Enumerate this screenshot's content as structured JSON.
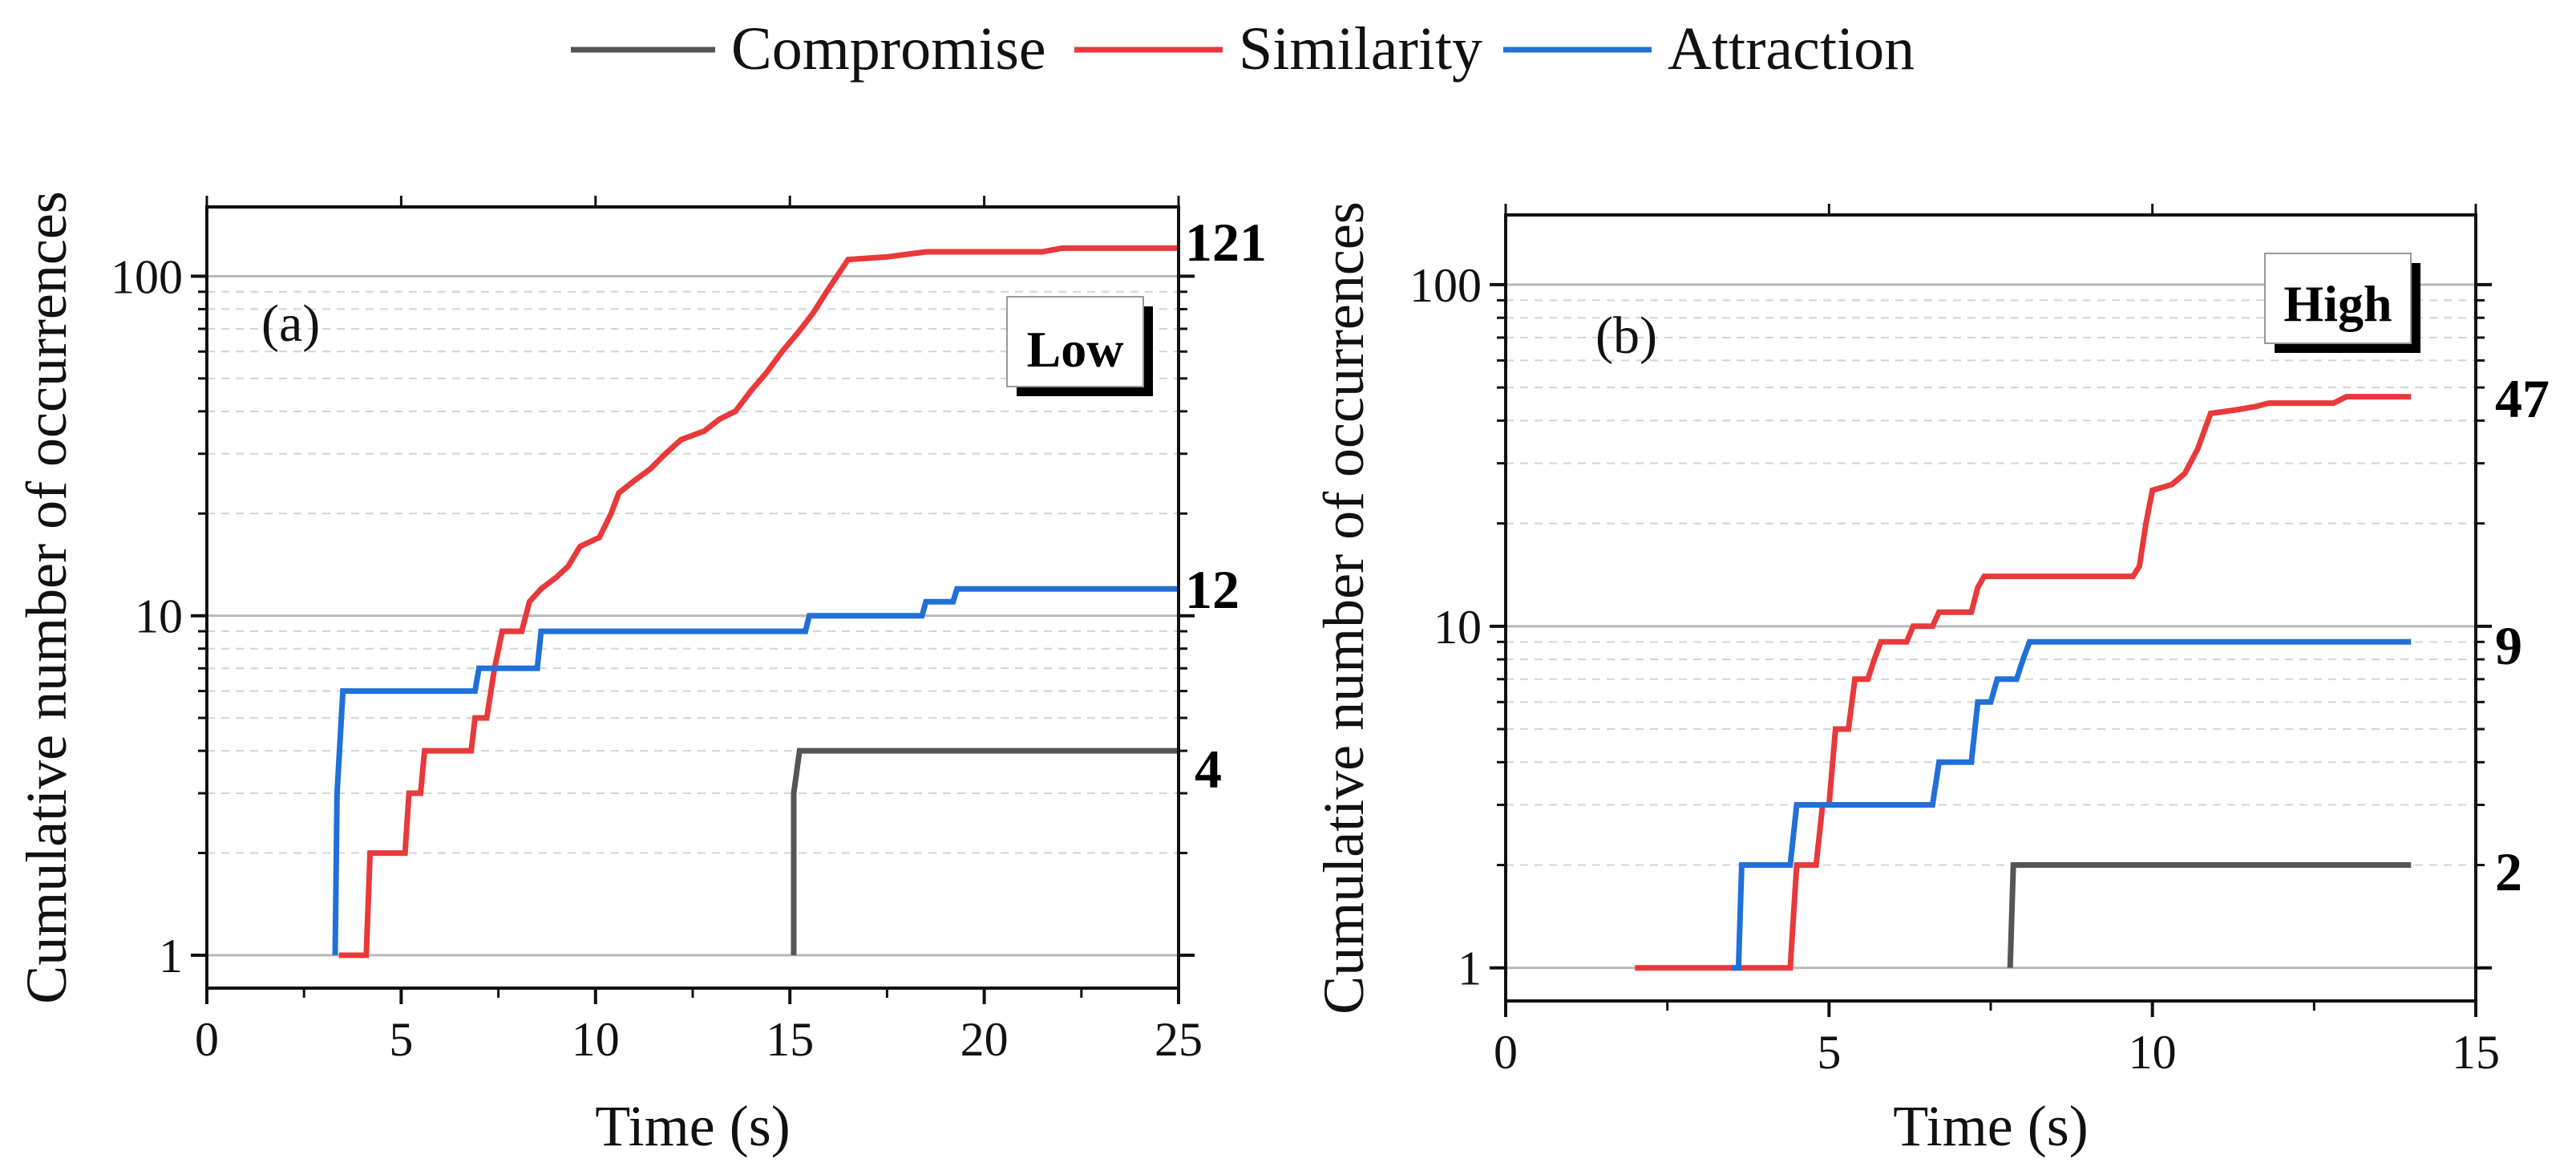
{
  "legend": [
    {
      "name": "Compromise",
      "color": "#555555"
    },
    {
      "name": "Similarity",
      "color": "#e8393b"
    },
    {
      "name": "Attraction",
      "color": "#2070d8"
    }
  ],
  "chart_data": [
    {
      "type": "line",
      "panel": "(a)",
      "badge": "Low",
      "xlabel": "Time (s)",
      "ylabel": "Cumulative number of occurrences",
      "yscale": "log",
      "xlim": [
        0,
        25
      ],
      "ylim": [
        0.8,
        160
      ],
      "xticks": [
        0,
        5,
        10,
        15,
        20,
        25
      ],
      "xtick_labels": [
        "0",
        "5",
        "10",
        "15",
        "20",
        "25"
      ],
      "yticks": [
        1,
        10,
        100
      ],
      "ytick_labels": [
        "1",
        "10",
        "100"
      ],
      "end_labels": [
        "121",
        "12",
        "4"
      ],
      "series": [
        {
          "name": "Compromise",
          "color": "#555555",
          "points": [
            [
              15.1,
              1
            ],
            [
              15.1,
              3
            ],
            [
              15.25,
              4
            ],
            [
              25,
              4
            ]
          ]
        },
        {
          "name": "Similarity",
          "color": "#e8393b",
          "points": [
            [
              3.4,
              1
            ],
            [
              4.1,
              1
            ],
            [
              4.2,
              2
            ],
            [
              5.1,
              2
            ],
            [
              5.2,
              3
            ],
            [
              5.5,
              3
            ],
            [
              5.6,
              4
            ],
            [
              6.8,
              4
            ],
            [
              6.9,
              5
            ],
            [
              7.2,
              5
            ],
            [
              7.4,
              7
            ],
            [
              7.6,
              9
            ],
            [
              8.1,
              9
            ],
            [
              8.3,
              11
            ],
            [
              8.6,
              12
            ],
            [
              9.0,
              13
            ],
            [
              9.3,
              14
            ],
            [
              9.6,
              16
            ],
            [
              10.1,
              17
            ],
            [
              10.4,
              20
            ],
            [
              10.6,
              23
            ],
            [
              11.0,
              25
            ],
            [
              11.4,
              27
            ],
            [
              11.8,
              30
            ],
            [
              12.2,
              33
            ],
            [
              12.8,
              35
            ],
            [
              13.2,
              38
            ],
            [
              13.6,
              40
            ],
            [
              14.0,
              46
            ],
            [
              14.4,
              52
            ],
            [
              14.8,
              60
            ],
            [
              15.2,
              68
            ],
            [
              15.6,
              78
            ],
            [
              16.0,
              92
            ],
            [
              16.5,
              112
            ],
            [
              17.5,
              114
            ],
            [
              18.5,
              118
            ],
            [
              21.5,
              118
            ],
            [
              22.0,
              121
            ],
            [
              25,
              121
            ]
          ]
        },
        {
          "name": "Attraction",
          "color": "#2070d8",
          "points": [
            [
              3.3,
              1
            ],
            [
              3.35,
              3
            ],
            [
              3.5,
              6
            ],
            [
              6.9,
              6
            ],
            [
              7.0,
              7
            ],
            [
              8.5,
              7
            ],
            [
              8.6,
              9
            ],
            [
              15.4,
              9
            ],
            [
              15.5,
              10
            ],
            [
              18.4,
              10
            ],
            [
              18.5,
              11
            ],
            [
              19.2,
              11
            ],
            [
              19.3,
              12
            ],
            [
              25,
              12
            ]
          ]
        }
      ]
    },
    {
      "type": "line",
      "panel": "(b)",
      "badge": "High",
      "xlabel": "Time (s)",
      "ylabel": "Cumulative number of occurrences",
      "yscale": "log",
      "xlim": [
        0,
        15
      ],
      "ylim": [
        0.8,
        160
      ],
      "xticks": [
        0,
        5,
        10,
        15
      ],
      "xtick_labels": [
        "0",
        "5",
        "10",
        "15"
      ],
      "yticks": [
        1,
        10,
        100
      ],
      "ytick_labels": [
        "1",
        "10",
        "100"
      ],
      "end_labels": [
        "47",
        "9",
        "2"
      ],
      "series": [
        {
          "name": "Compromise",
          "color": "#555555",
          "points": [
            [
              7.8,
              1
            ],
            [
              7.85,
              2
            ],
            [
              14,
              2
            ]
          ]
        },
        {
          "name": "Similarity",
          "color": "#e8393b",
          "points": [
            [
              2.0,
              1
            ],
            [
              4.4,
              1
            ],
            [
              4.5,
              2
            ],
            [
              4.8,
              2
            ],
            [
              4.9,
              3
            ],
            [
              5.0,
              3
            ],
            [
              5.1,
              5
            ],
            [
              5.3,
              5
            ],
            [
              5.4,
              7
            ],
            [
              5.6,
              7
            ],
            [
              5.7,
              8
            ],
            [
              5.8,
              9
            ],
            [
              6.2,
              9
            ],
            [
              6.3,
              10
            ],
            [
              6.6,
              10
            ],
            [
              6.7,
              11
            ],
            [
              7.2,
              11
            ],
            [
              7.3,
              13
            ],
            [
              7.4,
              14
            ],
            [
              9.7,
              14
            ],
            [
              9.8,
              15
            ],
            [
              9.9,
              20
            ],
            [
              10.0,
              25
            ],
            [
              10.3,
              26
            ],
            [
              10.5,
              28
            ],
            [
              10.7,
              33
            ],
            [
              10.9,
              42
            ],
            [
              11.3,
              43
            ],
            [
              11.6,
              44
            ],
            [
              11.8,
              45
            ],
            [
              12.8,
              45
            ],
            [
              13.0,
              47
            ],
            [
              14,
              47
            ]
          ]
        },
        {
          "name": "Attraction",
          "color": "#2070d8",
          "points": [
            [
              3.5,
              1
            ],
            [
              3.6,
              1
            ],
            [
              3.65,
              2
            ],
            [
              4.4,
              2
            ],
            [
              4.5,
              3
            ],
            [
              6.6,
              3
            ],
            [
              6.7,
              4
            ],
            [
              7.2,
              4
            ],
            [
              7.3,
              6
            ],
            [
              7.5,
              6
            ],
            [
              7.6,
              7
            ],
            [
              7.9,
              7
            ],
            [
              8.0,
              8
            ],
            [
              8.1,
              9
            ],
            [
              14,
              9
            ]
          ]
        }
      ]
    }
  ]
}
